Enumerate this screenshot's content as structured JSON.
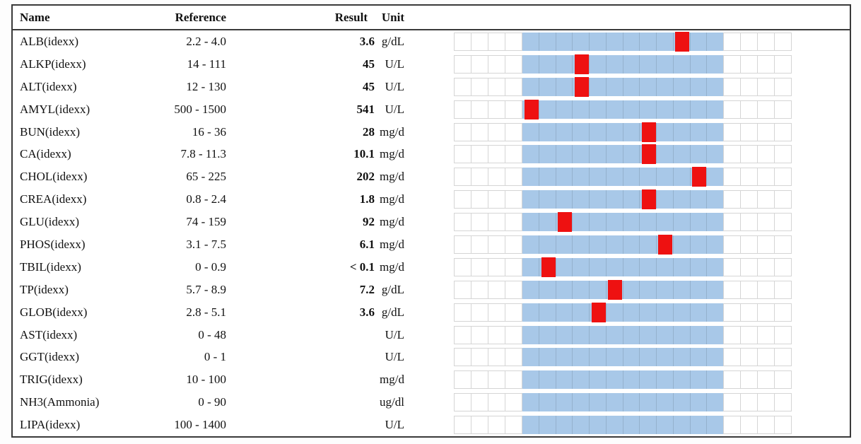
{
  "header": {
    "name": "Name",
    "reference": "Reference",
    "result": "Result",
    "unit": "Unit"
  },
  "colors": {
    "range_bar": "#a8c8e8",
    "marker": "#ee1111",
    "cell_border": "#d5d5d5",
    "table_border": "#3a3a3a"
  },
  "chart": {
    "flank_cells": 4,
    "segments": 12
  },
  "rows": [
    {
      "name": "ALB(idexx)",
      "reference": "2.2 - 4.0",
      "result": "3.6",
      "unit": "g/dL",
      "low": 2.2,
      "high": 4.0,
      "value": 3.6
    },
    {
      "name": "ALKP(idexx)",
      "reference": "14 - 111",
      "result": "45",
      "unit": "U/L",
      "low": 14,
      "high": 111,
      "value": 45
    },
    {
      "name": "ALT(idexx)",
      "reference": "12 - 130",
      "result": "45",
      "unit": "U/L",
      "low": 12,
      "high": 130,
      "value": 45
    },
    {
      "name": "AMYL(idexx)",
      "reference": "500 - 1500",
      "result": "541",
      "unit": "U/L",
      "low": 500,
      "high": 1500,
      "value": 541
    },
    {
      "name": "BUN(idexx)",
      "reference": "16 - 36",
      "result": "28",
      "unit": "mg/d",
      "low": 16,
      "high": 36,
      "value": 28
    },
    {
      "name": "CA(idexx)",
      "reference": "7.8 - 11.3",
      "result": "10.1",
      "unit": "mg/d",
      "low": 7.8,
      "high": 11.3,
      "value": 10.1
    },
    {
      "name": "CHOL(idexx)",
      "reference": "65 - 225",
      "result": "202",
      "unit": "mg/d",
      "low": 65,
      "high": 225,
      "value": 202
    },
    {
      "name": "CREA(idexx)",
      "reference": "0.8 - 2.4",
      "result": "1.8",
      "unit": "mg/d",
      "low": 0.8,
      "high": 2.4,
      "value": 1.8
    },
    {
      "name": "GLU(idexx)",
      "reference": "74 - 159",
      "result": "92",
      "unit": "mg/d",
      "low": 74,
      "high": 159,
      "value": 92
    },
    {
      "name": "PHOS(idexx)",
      "reference": "3.1 - 7.5",
      "result": "6.1",
      "unit": "mg/d",
      "low": 3.1,
      "high": 7.5,
      "value": 6.1
    },
    {
      "name": "TBIL(idexx)",
      "reference": "0 - 0.9",
      "result": "< 0.1",
      "unit": "mg/d",
      "low": 0,
      "high": 0.9,
      "value": 0.1
    },
    {
      "name": "TP(idexx)",
      "reference": "5.7 - 8.9",
      "result": "7.2",
      "unit": "g/dL",
      "low": 5.7,
      "high": 8.9,
      "value": 7.2
    },
    {
      "name": "GLOB(idexx)",
      "reference": "2.8 - 5.1",
      "result": "3.6",
      "unit": "g/dL",
      "low": 2.8,
      "high": 5.1,
      "value": 3.6
    },
    {
      "name": "AST(idexx)",
      "reference": "0 - 48",
      "result": "",
      "unit": "U/L",
      "low": 0,
      "high": 48,
      "value": null
    },
    {
      "name": "GGT(idexx)",
      "reference": "0 - 1",
      "result": "",
      "unit": "U/L",
      "low": 0,
      "high": 1,
      "value": null
    },
    {
      "name": "TRIG(idexx)",
      "reference": "10 - 100",
      "result": "",
      "unit": "mg/d",
      "low": 10,
      "high": 100,
      "value": null
    },
    {
      "name": "NH3(Ammonia)",
      "reference": "0 - 90",
      "result": "",
      "unit": "ug/dl",
      "low": 0,
      "high": 90,
      "value": null
    },
    {
      "name": "LIPA(idexx)",
      "reference": "100 - 1400",
      "result": "",
      "unit": "U/L",
      "low": 100,
      "high": 1400,
      "value": null
    }
  ]
}
